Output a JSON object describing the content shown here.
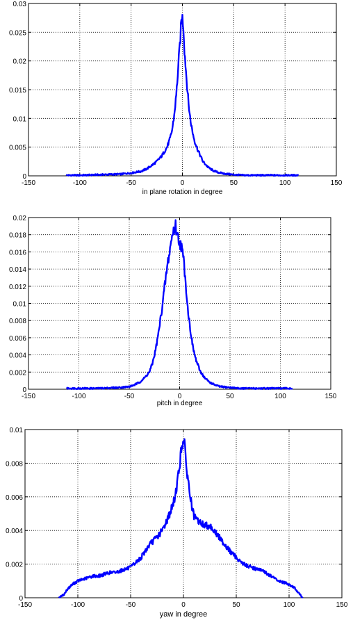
{
  "chart_data": [
    {
      "type": "line",
      "xlabel": "in plane rotation in degree",
      "ylabel": "",
      "xlim": [
        -150,
        150
      ],
      "ylim": [
        0,
        0.03
      ],
      "xticks": [
        -150,
        -100,
        -50,
        0,
        50,
        100,
        150
      ],
      "yticks": [
        0,
        0.005,
        0.01,
        0.015,
        0.02,
        0.025,
        0.03
      ],
      "xtick_labels": [
        "-150",
        "-100",
        "-50",
        "0",
        "50",
        "100",
        "150"
      ],
      "ytick_labels": [
        "0",
        "0.005",
        "0.01",
        "0.015",
        "0.02",
        "0.025",
        "0.03"
      ],
      "grid": true,
      "color": "#0000ff",
      "series": [
        {
          "x": [
            -113,
            -100,
            -80,
            -60,
            -50,
            -40,
            -35,
            -30,
            -25,
            -20,
            -15,
            -12,
            -10,
            -8,
            -6,
            -4,
            -2,
            -1,
            0,
            1,
            2,
            4,
            6,
            8,
            10,
            12,
            15,
            20,
            25,
            30,
            35,
            40,
            50,
            60,
            80,
            100,
            113
          ],
          "y": [
            0.0001,
            0.0001,
            0.0002,
            0.0003,
            0.0005,
            0.0008,
            0.0012,
            0.0018,
            0.0025,
            0.0035,
            0.005,
            0.0065,
            0.008,
            0.0105,
            0.014,
            0.019,
            0.024,
            0.027,
            0.0275,
            0.026,
            0.022,
            0.017,
            0.0125,
            0.0095,
            0.0075,
            0.006,
            0.0045,
            0.0025,
            0.0015,
            0.0009,
            0.0006,
            0.0004,
            0.0002,
            0.0001,
            0.0001,
            0.0001,
            0.0001
          ]
        }
      ]
    },
    {
      "type": "line",
      "xlabel": "pitch in degree",
      "ylabel": "",
      "xlim": [
        -150,
        150
      ],
      "ylim": [
        0,
        0.02
      ],
      "xticks": [
        -150,
        -100,
        -50,
        0,
        50,
        100,
        150
      ],
      "yticks": [
        0,
        0.002,
        0.004,
        0.006,
        0.008,
        0.01,
        0.012,
        0.014,
        0.016,
        0.018,
        0.02
      ],
      "xtick_labels": [
        "-150",
        "-100",
        "-50",
        "0",
        "50",
        "100",
        "150"
      ],
      "ytick_labels": [
        "0",
        "0.002",
        "0.004",
        "0.006",
        "0.008",
        "0.01",
        "0.012",
        "0.014",
        "0.016",
        "0.018",
        "0.02"
      ],
      "grid": true,
      "color": "#0000ff",
      "series": [
        {
          "x": [
            -112,
            -100,
            -80,
            -60,
            -50,
            -45,
            -40,
            -35,
            -30,
            -27,
            -24,
            -21,
            -18,
            -15,
            -12,
            -10,
            -8,
            -6,
            -4,
            -2,
            0,
            2,
            4,
            6,
            8,
            10,
            13,
            16,
            20,
            25,
            30,
            35,
            40,
            50,
            60,
            80,
            100,
            112
          ],
          "y": [
            0.0001,
            0.0001,
            0.0001,
            0.0002,
            0.0003,
            0.0005,
            0.0008,
            0.0013,
            0.002,
            0.003,
            0.0045,
            0.0065,
            0.009,
            0.0118,
            0.0145,
            0.016,
            0.0175,
            0.0185,
            0.019,
            0.0178,
            0.0172,
            0.0165,
            0.015,
            0.0125,
            0.0095,
            0.0075,
            0.005,
            0.0035,
            0.0022,
            0.0013,
            0.0008,
            0.0005,
            0.0003,
            0.0002,
            0.0001,
            0.0001,
            0.0001,
            0.0001
          ]
        }
      ]
    },
    {
      "type": "line",
      "xlabel": "yaw in degree",
      "ylabel": "",
      "xlim": [
        -150,
        150
      ],
      "ylim": [
        0,
        0.01
      ],
      "xticks": [
        -150,
        -100,
        -50,
        0,
        50,
        100,
        150
      ],
      "yticks": [
        0,
        0.002,
        0.004,
        0.006,
        0.008,
        0.01
      ],
      "xtick_labels": [
        "-150",
        "-100",
        "-50",
        "0",
        "50",
        "100",
        "150"
      ],
      "ytick_labels": [
        "0",
        "0.002",
        "0.004",
        "0.006",
        "0.008",
        "0.01"
      ],
      "grid": true,
      "color": "#0000ff",
      "series": [
        {
          "x": [
            -118,
            -113,
            -110,
            -105,
            -100,
            -95,
            -90,
            -85,
            -80,
            -75,
            -70,
            -65,
            -60,
            -55,
            -50,
            -45,
            -40,
            -35,
            -30,
            -25,
            -20,
            -15,
            -10,
            -8,
            -6,
            -4,
            -2,
            0,
            1,
            2,
            4,
            6,
            8,
            10,
            15,
            20,
            25,
            30,
            35,
            40,
            45,
            50,
            55,
            60,
            65,
            70,
            75,
            80,
            85,
            90,
            95,
            100,
            105,
            110,
            113
          ],
          "y": [
            0.0,
            0.0002,
            0.0005,
            0.0008,
            0.001,
            0.0011,
            0.0012,
            0.0013,
            0.0013,
            0.0014,
            0.0015,
            0.0015,
            0.0016,
            0.0017,
            0.0018,
            0.0021,
            0.0024,
            0.0029,
            0.0033,
            0.0036,
            0.004,
            0.0047,
            0.0055,
            0.006,
            0.0068,
            0.0077,
            0.0088,
            0.0095,
            0.0092,
            0.0082,
            0.0072,
            0.0062,
            0.0054,
            0.0048,
            0.0045,
            0.0043,
            0.0043,
            0.0039,
            0.0035,
            0.0031,
            0.0027,
            0.0024,
            0.0021,
            0.0019,
            0.0018,
            0.0017,
            0.0016,
            0.0014,
            0.0012,
            0.001,
            0.0009,
            0.0008,
            0.0006,
            0.0002,
            0.0
          ]
        }
      ]
    }
  ]
}
